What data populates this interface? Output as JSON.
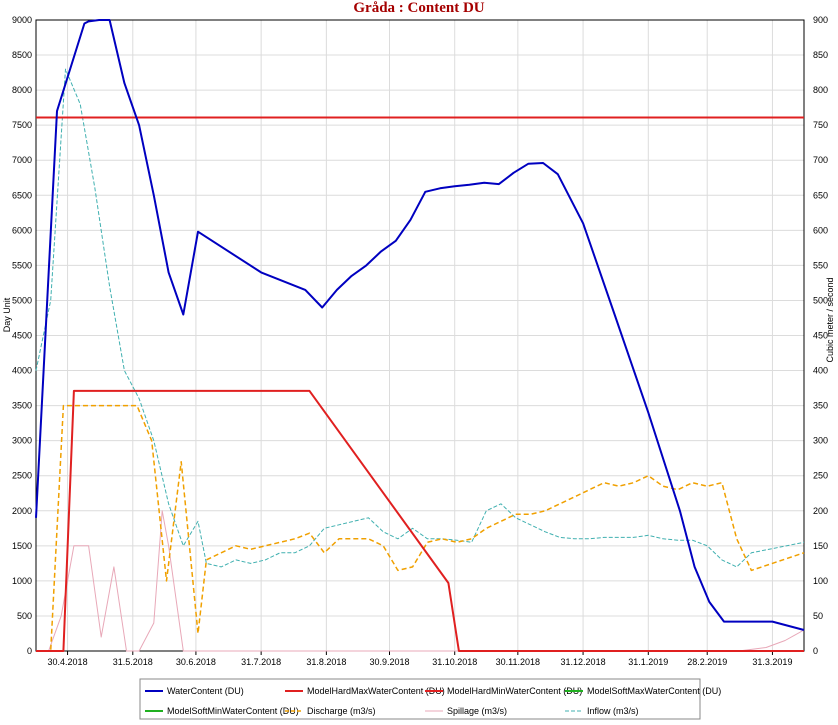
{
  "chart_data": {
    "type": "line",
    "title": "Gråda : Content DU",
    "ylabel_left": "Day Unit",
    "ylabel_right": "Cubic meter / second",
    "ylim_left": [
      0,
      9000
    ],
    "ylim_right": [
      0,
      900
    ],
    "yticks_left": [
      "0",
      "500",
      "1000",
      "1500",
      "2000",
      "2500",
      "3000",
      "3500",
      "4000",
      "4500",
      "5000",
      "5500",
      "6000",
      "6500",
      "7000",
      "7500",
      "8000",
      "8500",
      "9000"
    ],
    "yticks_right": [
      "0",
      "50",
      "100",
      "150",
      "200",
      "250",
      "300",
      "350",
      "400",
      "450",
      "500",
      "550",
      "600",
      "650",
      "700",
      "750",
      "800",
      "850",
      "900"
    ],
    "x_start": "2018-04-15",
    "x_end": "2019-04-15",
    "xticks": [
      {
        "label": "30.4.2018",
        "date": "2018-04-30"
      },
      {
        "label": "31.5.2018",
        "date": "2018-05-31"
      },
      {
        "label": "30.6.2018",
        "date": "2018-06-30"
      },
      {
        "label": "31.7.2018",
        "date": "2018-07-31"
      },
      {
        "label": "31.8.2018",
        "date": "2018-08-31"
      },
      {
        "label": "30.9.2018",
        "date": "2018-09-30"
      },
      {
        "label": "31.10.2018",
        "date": "2018-10-31"
      },
      {
        "label": "30.11.2018",
        "date": "2018-11-30"
      },
      {
        "label": "31.12.2018",
        "date": "2018-12-31"
      },
      {
        "label": "31.1.2019",
        "date": "2019-01-31"
      },
      {
        "label": "28.2.2019",
        "date": "2019-02-28"
      },
      {
        "label": "31.3.2019",
        "date": "2019-03-31"
      }
    ],
    "grid": true,
    "legend_position": "bottom",
    "series": [
      {
        "name": "WaterContent (DU)",
        "axis": "left",
        "color": "#0000c0",
        "style": "solid",
        "width": 2,
        "x": [
          "2018-04-15",
          "2018-04-25",
          "2018-05-08",
          "2018-05-10",
          "2018-05-15",
          "2018-05-20",
          "2018-05-27",
          "2018-06-03",
          "2018-06-10",
          "2018-06-17",
          "2018-06-24",
          "2018-07-01",
          "2018-07-31",
          "2018-08-21",
          "2018-08-29",
          "2018-09-05",
          "2018-09-12",
          "2018-09-19",
          "2018-09-26",
          "2018-10-03",
          "2018-10-10",
          "2018-10-17",
          "2018-10-24",
          "2018-10-31",
          "2018-11-07",
          "2018-11-14",
          "2018-11-21",
          "2018-11-28",
          "2018-12-05",
          "2018-12-12",
          "2018-12-19",
          "2018-12-31",
          "2019-01-15",
          "2019-01-31",
          "2019-02-15",
          "2019-02-22",
          "2019-03-01",
          "2019-03-08",
          "2019-03-31",
          "2019-04-15"
        ],
        "y": [
          1900,
          7700,
          8950,
          8980,
          9000,
          9000,
          8100,
          7500,
          6500,
          5400,
          4800,
          5980,
          5400,
          5150,
          4900,
          5150,
          5350,
          5500,
          5700,
          5850,
          6150,
          6550,
          6600,
          6630,
          6650,
          6680,
          6660,
          6820,
          6950,
          6960,
          6800,
          6100,
          4800,
          3400,
          2000,
          1200,
          700,
          420,
          420,
          300
        ]
      },
      {
        "name": "ModelHardMaxWaterContent (DU)",
        "axis": "left",
        "color": "#e02020",
        "style": "solid",
        "width": 2,
        "x": [
          "2018-04-15",
          "2019-04-15"
        ],
        "y": [
          7610,
          7610
        ]
      },
      {
        "name": "ModelHardMinWaterContent (DU)",
        "axis": "left",
        "color": "#e02020",
        "style": "solid",
        "width": 2,
        "x": [
          "2018-04-15",
          "2018-04-28",
          "2018-05-03",
          "2018-08-23",
          "2018-10-28",
          "2018-11-02",
          "2019-04-15"
        ],
        "y": [
          0,
          0,
          3710,
          3710,
          970,
          0,
          0
        ]
      },
      {
        "name": "ModelSoftMaxWaterContent (DU)",
        "axis": "left",
        "color": "#20b020",
        "style": "solid",
        "width": 2,
        "x": [],
        "y": []
      },
      {
        "name": "ModelSoftMinWaterContent (DU)",
        "axis": "left",
        "color": "#20b020",
        "style": "solid",
        "width": 2,
        "x": [],
        "y": []
      },
      {
        "name": "Discharge (m3/s)",
        "axis": "right",
        "color": "#f0a000",
        "style": "dashed",
        "width": 1.5,
        "x": [
          "2018-04-15",
          "2018-04-22",
          "2018-04-28",
          "2018-05-05",
          "2018-05-12",
          "2018-05-19",
          "2018-05-26",
          "2018-06-02",
          "2018-06-09",
          "2018-06-16",
          "2018-06-23",
          "2018-07-01",
          "2018-07-05",
          "2018-07-12",
          "2018-07-19",
          "2018-07-26",
          "2018-08-02",
          "2018-08-09",
          "2018-08-16",
          "2018-08-23",
          "2018-08-30",
          "2018-09-06",
          "2018-09-13",
          "2018-09-20",
          "2018-09-27",
          "2018-10-04",
          "2018-10-11",
          "2018-10-18",
          "2018-10-25",
          "2018-11-01",
          "2018-11-08",
          "2018-11-15",
          "2018-11-22",
          "2018-11-29",
          "2018-12-06",
          "2018-12-13",
          "2018-12-20",
          "2018-12-27",
          "2019-01-03",
          "2019-01-10",
          "2019-01-17",
          "2019-01-24",
          "2019-01-31",
          "2019-02-07",
          "2019-02-14",
          "2019-02-21",
          "2019-02-28",
          "2019-03-07",
          "2019-03-14",
          "2019-03-21",
          "2019-04-15"
        ],
        "y": [
          0,
          0,
          350,
          350,
          350,
          350,
          350,
          350,
          300,
          100,
          270,
          25,
          130,
          140,
          150,
          145,
          150,
          155,
          160,
          168,
          140,
          160,
          160,
          160,
          150,
          115,
          120,
          155,
          160,
          155,
          160,
          175,
          185,
          195,
          195,
          200,
          210,
          220,
          230,
          240,
          235,
          240,
          250,
          235,
          230,
          240,
          235,
          240,
          160,
          115,
          140
        ]
      },
      {
        "name": "Spillage (m3/s)",
        "axis": "right",
        "color": "#e8a8b8",
        "style": "solid",
        "width": 1,
        "x": [
          "2018-04-15",
          "2018-04-21",
          "2018-04-27",
          "2018-05-03",
          "2018-05-10",
          "2018-05-16",
          "2018-05-22",
          "2018-05-28",
          "2018-06-03",
          "2018-06-10",
          "2018-06-14",
          "2018-06-17",
          "2018-06-24",
          "2018-07-01",
          "2019-03-15",
          "2019-03-28",
          "2019-04-06",
          "2019-04-15"
        ],
        "y": [
          0,
          0,
          50,
          150,
          150,
          20,
          120,
          0,
          0,
          40,
          200,
          150,
          0,
          0,
          0,
          5,
          15,
          30
        ]
      },
      {
        "name": "Inflow (m3/s)",
        "axis": "right",
        "color": "#40b0b0",
        "style": "dashed",
        "width": 1,
        "x": [
          "2018-04-15",
          "2018-04-22",
          "2018-04-29",
          "2018-05-06",
          "2018-05-13",
          "2018-05-20",
          "2018-05-27",
          "2018-06-03",
          "2018-06-10",
          "2018-06-17",
          "2018-06-24",
          "2018-07-01",
          "2018-07-05",
          "2018-07-12",
          "2018-07-19",
          "2018-07-26",
          "2018-08-02",
          "2018-08-09",
          "2018-08-16",
          "2018-08-23",
          "2018-08-30",
          "2018-09-06",
          "2018-09-13",
          "2018-09-20",
          "2018-09-27",
          "2018-10-04",
          "2018-10-11",
          "2018-10-18",
          "2018-10-25",
          "2018-11-01",
          "2018-11-08",
          "2018-11-15",
          "2018-11-22",
          "2018-11-29",
          "2018-12-06",
          "2018-12-13",
          "2018-12-20",
          "2018-12-27",
          "2019-01-03",
          "2019-01-10",
          "2019-01-17",
          "2019-01-24",
          "2019-01-31",
          "2019-02-07",
          "2019-02-14",
          "2019-02-21",
          "2019-02-28",
          "2019-03-07",
          "2019-03-14",
          "2019-03-21",
          "2019-04-15"
        ],
        "y": [
          400,
          500,
          830,
          780,
          660,
          520,
          400,
          360,
          300,
          210,
          150,
          185,
          125,
          120,
          130,
          125,
          130,
          140,
          140,
          150,
          175,
          180,
          185,
          190,
          170,
          160,
          175,
          160,
          160,
          158,
          155,
          200,
          210,
          190,
          180,
          170,
          162,
          160,
          160,
          162,
          162,
          162,
          165,
          160,
          158,
          158,
          150,
          130,
          120,
          140,
          155
        ]
      }
    ]
  }
}
